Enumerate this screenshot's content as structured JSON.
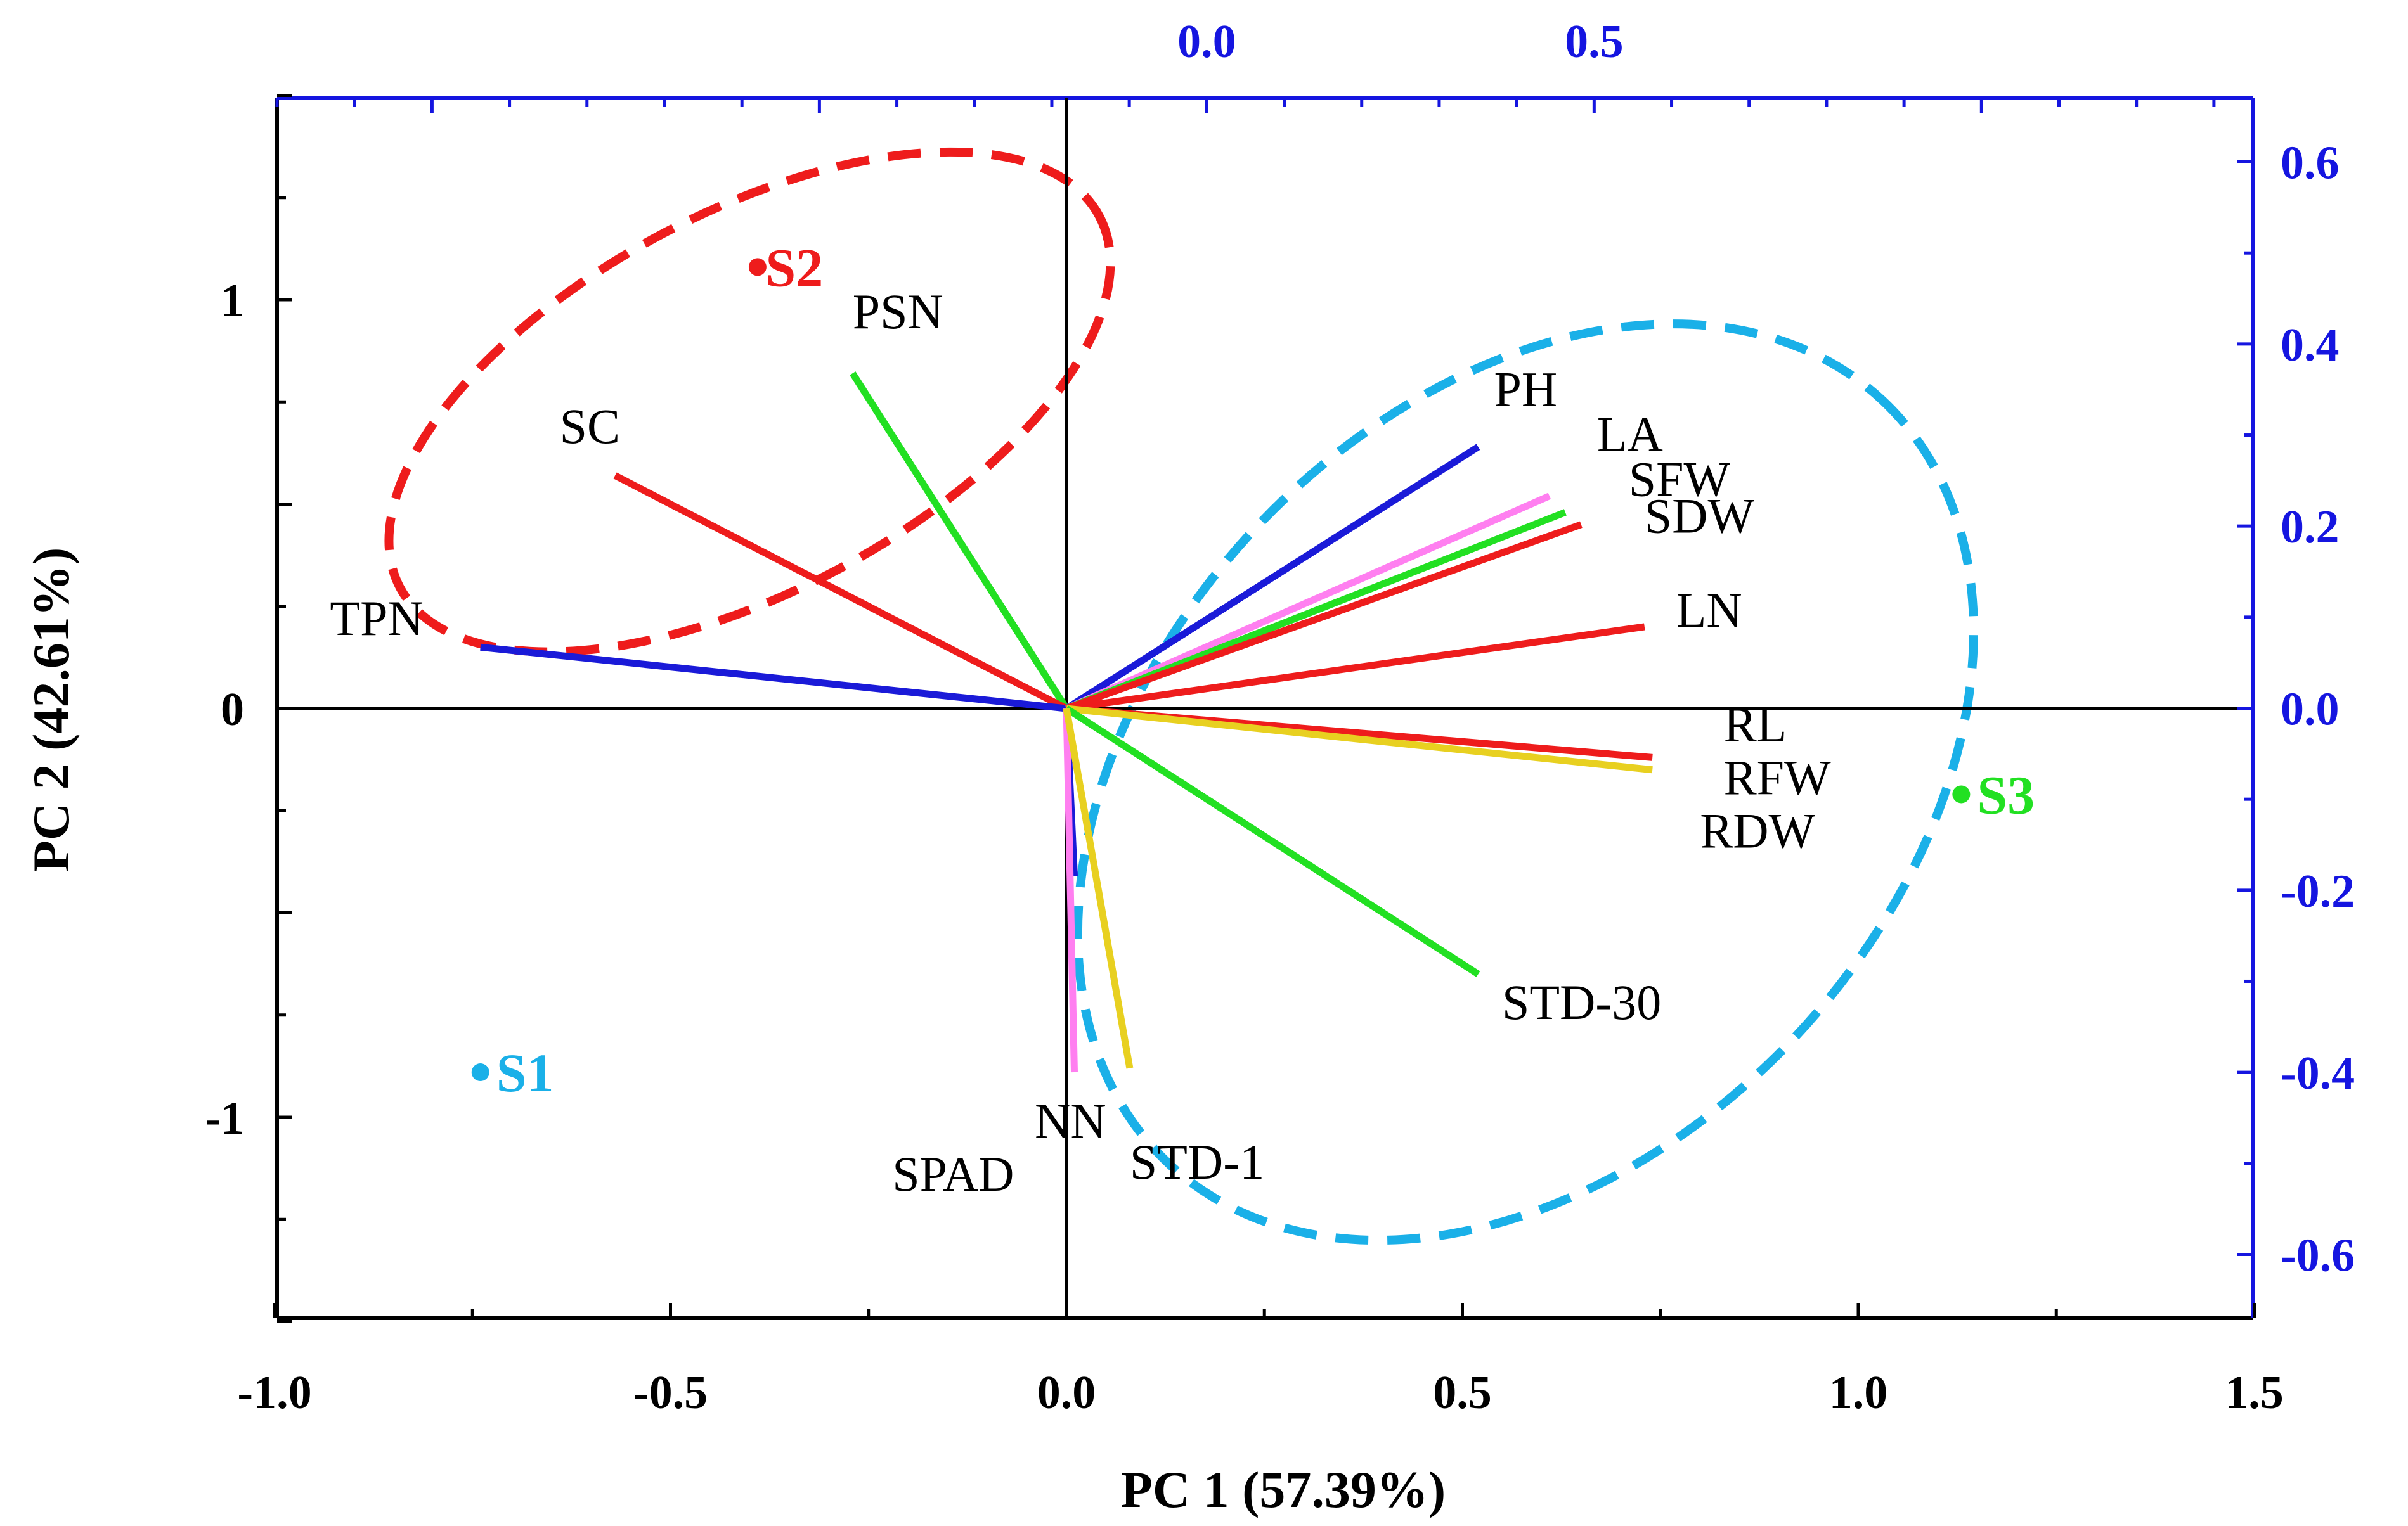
{
  "chart_data": {
    "type": "biplot",
    "xlabel": "PC 1 (57.39%)",
    "ylabel": "PC 2 (42.61%)",
    "xlim": [
      -1.0,
      1.5
    ],
    "ylim": [
      -1.5,
      1.5
    ],
    "x_ticks": [
      {
        "value": -1.0,
        "label": "-1.0"
      },
      {
        "value": -0.5,
        "label": "-0.5"
      },
      {
        "value": 0.0,
        "label": "0.0"
      },
      {
        "value": 0.5,
        "label": "0.5"
      },
      {
        "value": 1.0,
        "label": "1.0"
      },
      {
        "value": 1.5,
        "label": "1.5"
      }
    ],
    "y_ticks": [
      {
        "value": 1,
        "label": "1"
      },
      {
        "value": 0,
        "label": "0"
      },
      {
        "value": -1,
        "label": "-1"
      }
    ],
    "top_axis": {
      "range": [
        -1.2,
        1.35
      ],
      "ticks": [
        {
          "value": 0.0,
          "label": "0.0"
        },
        {
          "value": 0.5,
          "label": "0.5"
        }
      ],
      "color": "#1515e0"
    },
    "right_axis": {
      "range": [
        -0.67,
        0.67
      ],
      "ticks": [
        {
          "value": 0.6,
          "label": "0.6"
        },
        {
          "value": 0.4,
          "label": "0.4"
        },
        {
          "value": 0.2,
          "label": "0.2"
        },
        {
          "value": 0.0,
          "label": "0.0"
        },
        {
          "value": -0.2,
          "label": "-0.2"
        },
        {
          "value": -0.4,
          "label": "-0.4"
        },
        {
          "value": -0.6,
          "label": "-0.6"
        }
      ],
      "color": "#1515e0"
    },
    "variables": [
      {
        "name": "PSN",
        "x": -0.27,
        "y": 0.82,
        "color": "#22e022"
      },
      {
        "name": "SC",
        "x": -0.57,
        "y": 0.57,
        "color": "#ee1c1c"
      },
      {
        "name": "TPN",
        "x": -0.74,
        "y": 0.15,
        "color": "#1a1ad8"
      },
      {
        "name": "PH",
        "x": 0.52,
        "y": 0.64,
        "color": "#1a1ad8"
      },
      {
        "name": "LA",
        "x": 0.61,
        "y": 0.52,
        "color": "#ff7ff0"
      },
      {
        "name": "SFW",
        "x": 0.63,
        "y": 0.48,
        "color": "#22e022"
      },
      {
        "name": "SDW",
        "x": 0.65,
        "y": 0.45,
        "color": "#ee1c1c"
      },
      {
        "name": "LN",
        "x": 0.73,
        "y": 0.2,
        "color": "#ee1c1c"
      },
      {
        "name": "RL",
        "x": 0.74,
        "y": -0.12,
        "color": "#ee1c1c"
      },
      {
        "name": "RFW",
        "x": 0.74,
        "y": -0.15,
        "color": "#e8d020"
      },
      {
        "name": "RDW",
        "x": 0.74,
        "y": -0.15,
        "color": "#e8d020"
      },
      {
        "name": "STD-30",
        "x": 0.52,
        "y": -0.65,
        "color": "#22e022"
      },
      {
        "name": "NN",
        "x": 0.01,
        "y": -0.41,
        "color": "#1a1ad8"
      },
      {
        "name": "SPAD",
        "x": 0.01,
        "y": -0.89,
        "color": "#ff7ff0"
      },
      {
        "name": "STD-1",
        "x": 0.08,
        "y": -0.88,
        "color": "#e8d020"
      }
    ],
    "samples": [
      {
        "name": "S1",
        "x": -0.74,
        "y": -0.89,
        "color": "#1ab0e8"
      },
      {
        "name": "S2",
        "x": -0.39,
        "y": 1.08,
        "color": "#ee1c1c"
      },
      {
        "name": "S3",
        "x": 1.13,
        "y": -0.21,
        "color": "#22e022"
      }
    ],
    "ellipses": [
      {
        "group": "S2",
        "cx": -0.4,
        "cy": 0.75,
        "rx": 0.5,
        "ry": 0.24,
        "rotate_deg": -28,
        "color": "#ee1c1c"
      },
      {
        "group": "S3",
        "cx": 0.58,
        "cy": -0.18,
        "rx": 0.66,
        "ry": 0.47,
        "rotate_deg": -47,
        "color": "#1ab0e8"
      }
    ],
    "label_placement": {
      "PSN": [
        -0.27,
        0.93
      ],
      "SC": [
        -0.64,
        0.65
      ],
      "TPN": [
        -0.93,
        0.18
      ],
      "PH": [
        0.54,
        0.74
      ],
      "LA": [
        0.67,
        0.63
      ],
      "SFW": [
        0.71,
        0.52
      ],
      "SDW": [
        0.73,
        0.43
      ],
      "LN": [
        0.77,
        0.2
      ],
      "RL": [
        0.83,
        -0.08
      ],
      "RFW": [
        0.83,
        -0.21
      ],
      "RDW": [
        0.8,
        -0.34
      ],
      "STD-30": [
        0.55,
        -0.76
      ],
      "NN": [
        -0.04,
        -1.05
      ],
      "SPAD": [
        -0.22,
        -1.18
      ],
      "STD-1": [
        0.08,
        -1.15
      ],
      "S1": [
        -0.72,
        -0.89
      ],
      "S2": [
        -0.38,
        1.08
      ],
      "S3": [
        1.15,
        -0.21
      ]
    }
  }
}
